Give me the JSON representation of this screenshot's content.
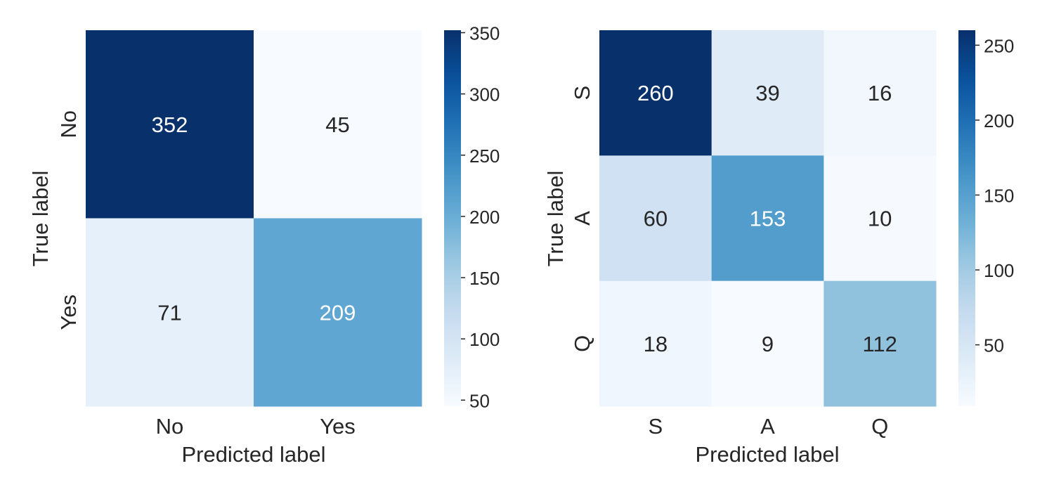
{
  "chart_data": [
    {
      "type": "heatmap",
      "xlabel": "Predicted label",
      "ylabel": "True label",
      "x_categories": [
        "No",
        "Yes"
      ],
      "y_categories": [
        "No",
        "Yes"
      ],
      "values": [
        [
          352,
          45
        ],
        [
          71,
          209
        ]
      ],
      "colormap": "Blues",
      "colorbar": {
        "min": 45,
        "max": 352,
        "ticks": [
          50,
          100,
          150,
          200,
          250,
          300,
          350
        ]
      }
    },
    {
      "type": "heatmap",
      "xlabel": "Predicted label",
      "ylabel": "True label",
      "x_categories": [
        "S",
        "A",
        "Q"
      ],
      "y_categories": [
        "S",
        "A",
        "Q"
      ],
      "values": [
        [
          260,
          39,
          16
        ],
        [
          60,
          153,
          10
        ],
        [
          18,
          9,
          112
        ]
      ],
      "colormap": "Blues",
      "colorbar": {
        "min": 9,
        "max": 260,
        "ticks": [
          50,
          100,
          150,
          200,
          250
        ]
      }
    }
  ]
}
